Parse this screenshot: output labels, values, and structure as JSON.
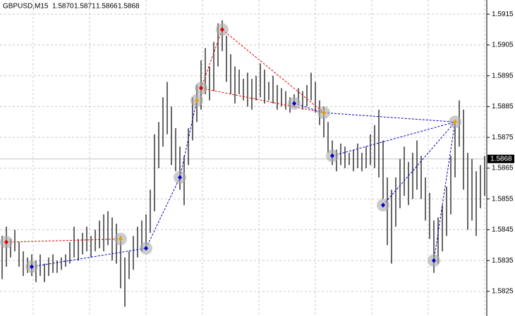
{
  "chart_data": {
    "type": "ohlc",
    "title": "GBPUSD,M15",
    "quote": [
      {
        "value": 1.587,
        "label": "1.5870"
      },
      1.5871,
      1.5866,
      1.5868
    ],
    "current": 1.5868,
    "ylim": [
      1.5817,
      1.59196
    ],
    "yticks": [
      1.5915,
      1.5905,
      1.5895,
      1.5885,
      1.5875,
      1.5865,
      1.5855,
      1.5845,
      1.5835,
      1.5825
    ],
    "grid": true,
    "color": "#000000",
    "high": [
      1.5843,
      1.5846,
      1.5842,
      1.5845,
      1.5841,
      1.5838,
      1.5836,
      1.5837,
      1.5835,
      1.5837,
      1.5834,
      1.5836,
      1.5837,
      1.5835,
      1.5836,
      1.5837,
      1.5841,
      1.5846,
      1.5842,
      1.5844,
      1.5846,
      1.5843,
      1.5845,
      1.5848,
      1.585,
      1.5851,
      1.5849,
      1.5847,
      1.5843,
      1.5836,
      1.5838,
      1.5843,
      1.5846,
      1.5848,
      1.585,
      1.5858,
      1.5876,
      1.588,
      1.5888,
      1.5893,
      1.5885,
      1.5878,
      1.5872,
      1.5869,
      1.5878,
      1.5888,
      1.5892,
      1.59,
      1.5904,
      1.5898,
      1.5906,
      1.5912,
      1.5913,
      1.5908,
      1.5902,
      1.5898,
      1.5897,
      1.5894,
      1.5896,
      1.5894,
      1.5895,
      1.5899,
      1.5897,
      1.5893,
      1.5895,
      1.5892,
      1.5891,
      1.589,
      1.5888,
      1.5889,
      1.5891,
      1.589,
      1.5892,
      1.5896,
      1.5893,
      1.5887,
      1.5885,
      1.588,
      1.5874,
      1.5871,
      1.5873,
      1.5872,
      1.587,
      1.5871,
      1.5873,
      1.587,
      1.5872,
      1.5876,
      1.5879,
      1.5884,
      1.5874,
      1.5862,
      1.5858,
      1.5862,
      1.5868,
      1.5872,
      1.5867,
      1.587,
      1.5874,
      1.5869,
      1.5862,
      1.5857,
      1.5848,
      1.5849,
      1.5853,
      1.5859,
      1.5869,
      1.588,
      1.5887,
      1.5884,
      1.587,
      1.5868,
      1.5864,
      1.5866,
      1.5869
    ],
    "low": [
      1.5829,
      1.5833,
      1.5836,
      1.5838,
      1.5833,
      1.583,
      1.5831,
      1.583,
      1.5828,
      1.583,
      1.5828,
      1.583,
      1.5831,
      1.5831,
      1.5832,
      1.5833,
      1.5834,
      1.5836,
      1.5835,
      1.5837,
      1.5838,
      1.5836,
      1.5838,
      1.5839,
      1.5838,
      1.584,
      1.5835,
      1.5834,
      1.5826,
      1.582,
      1.5829,
      1.5832,
      1.5836,
      1.5838,
      1.584,
      1.5844,
      1.5851,
      1.5865,
      1.5872,
      1.5876,
      1.5866,
      1.5864,
      1.5858,
      1.5853,
      1.5866,
      1.5874,
      1.588,
      1.5884,
      1.5889,
      1.5887,
      1.589,
      1.5898,
      1.5903,
      1.5893,
      1.5889,
      1.5886,
      1.5889,
      1.5887,
      1.5885,
      1.5884,
      1.5887,
      1.5888,
      1.5886,
      1.5887,
      1.5886,
      1.5884,
      1.5885,
      1.5884,
      1.5883,
      1.5885,
      1.5886,
      1.5884,
      1.5885,
      1.5887,
      1.5883,
      1.5879,
      1.5875,
      1.587,
      1.5866,
      1.5864,
      1.5866,
      1.5865,
      1.5866,
      1.5864,
      1.5865,
      1.5864,
      1.5865,
      1.5866,
      1.5865,
      1.5862,
      1.5855,
      1.584,
      1.5834,
      1.5846,
      1.5852,
      1.5856,
      1.5853,
      1.5855,
      1.5858,
      1.5855,
      1.5848,
      1.5842,
      1.5831,
      1.5834,
      1.5838,
      1.5843,
      1.585,
      1.5862,
      1.5872,
      1.5858,
      1.5845,
      1.5848,
      1.5843,
      1.5852,
      1.5856
    ],
    "markers": [
      {
        "bar": 1,
        "price": 1.5841,
        "color": "#e00000"
      },
      {
        "bar": 7,
        "price": 1.5833,
        "color": "#0000c8"
      },
      {
        "bar": 28,
        "price": 1.5842,
        "color": "#e0a000"
      },
      {
        "bar": 34,
        "price": 1.5839,
        "color": "#0000c8"
      },
      {
        "bar": 42,
        "price": 1.5862,
        "color": "#0000c8"
      },
      {
        "bar": 46,
        "price": 1.5887,
        "color": "#e0a000"
      },
      {
        "bar": 47,
        "price": 1.5891,
        "color": "#e00000"
      },
      {
        "bar": 52,
        "price": 1.591,
        "color": "#e00000"
      },
      {
        "bar": 69,
        "price": 1.5886,
        "color": "#0000c8"
      },
      {
        "bar": 76,
        "price": 1.5883,
        "color": "#e0a000"
      },
      {
        "bar": 78,
        "price": 1.5869,
        "color": "#0000c8"
      },
      {
        "bar": 90,
        "price": 1.5853,
        "color": "#0000c8"
      },
      {
        "bar": 102,
        "price": 1.5835,
        "color": "#0000c8"
      },
      {
        "bar": 107,
        "price": 1.588,
        "color": "#e0a000"
      }
    ],
    "links": [
      {
        "from": 0,
        "to": 2,
        "color": "#e00000"
      },
      {
        "from": 6,
        "to": 7,
        "color": "#e00000"
      },
      {
        "from": 7,
        "to": 9,
        "color": "#e00000"
      },
      {
        "from": 6,
        "to": 9,
        "color": "#e00000"
      },
      {
        "from": 1,
        "to": 3,
        "color": "#0000c8"
      },
      {
        "from": 3,
        "to": 4,
        "color": "#0000c8"
      },
      {
        "from": 4,
        "to": 5,
        "color": "#0000c8"
      },
      {
        "from": 8,
        "to": 9,
        "color": "#0000c8"
      },
      {
        "from": 9,
        "to": 13,
        "color": "#0000c8"
      },
      {
        "from": 10,
        "to": 13,
        "color": "#0000c8"
      },
      {
        "from": 11,
        "to": 13,
        "color": "#0000c8"
      },
      {
        "from": 12,
        "to": 13,
        "color": "#0000c8"
      }
    ]
  }
}
